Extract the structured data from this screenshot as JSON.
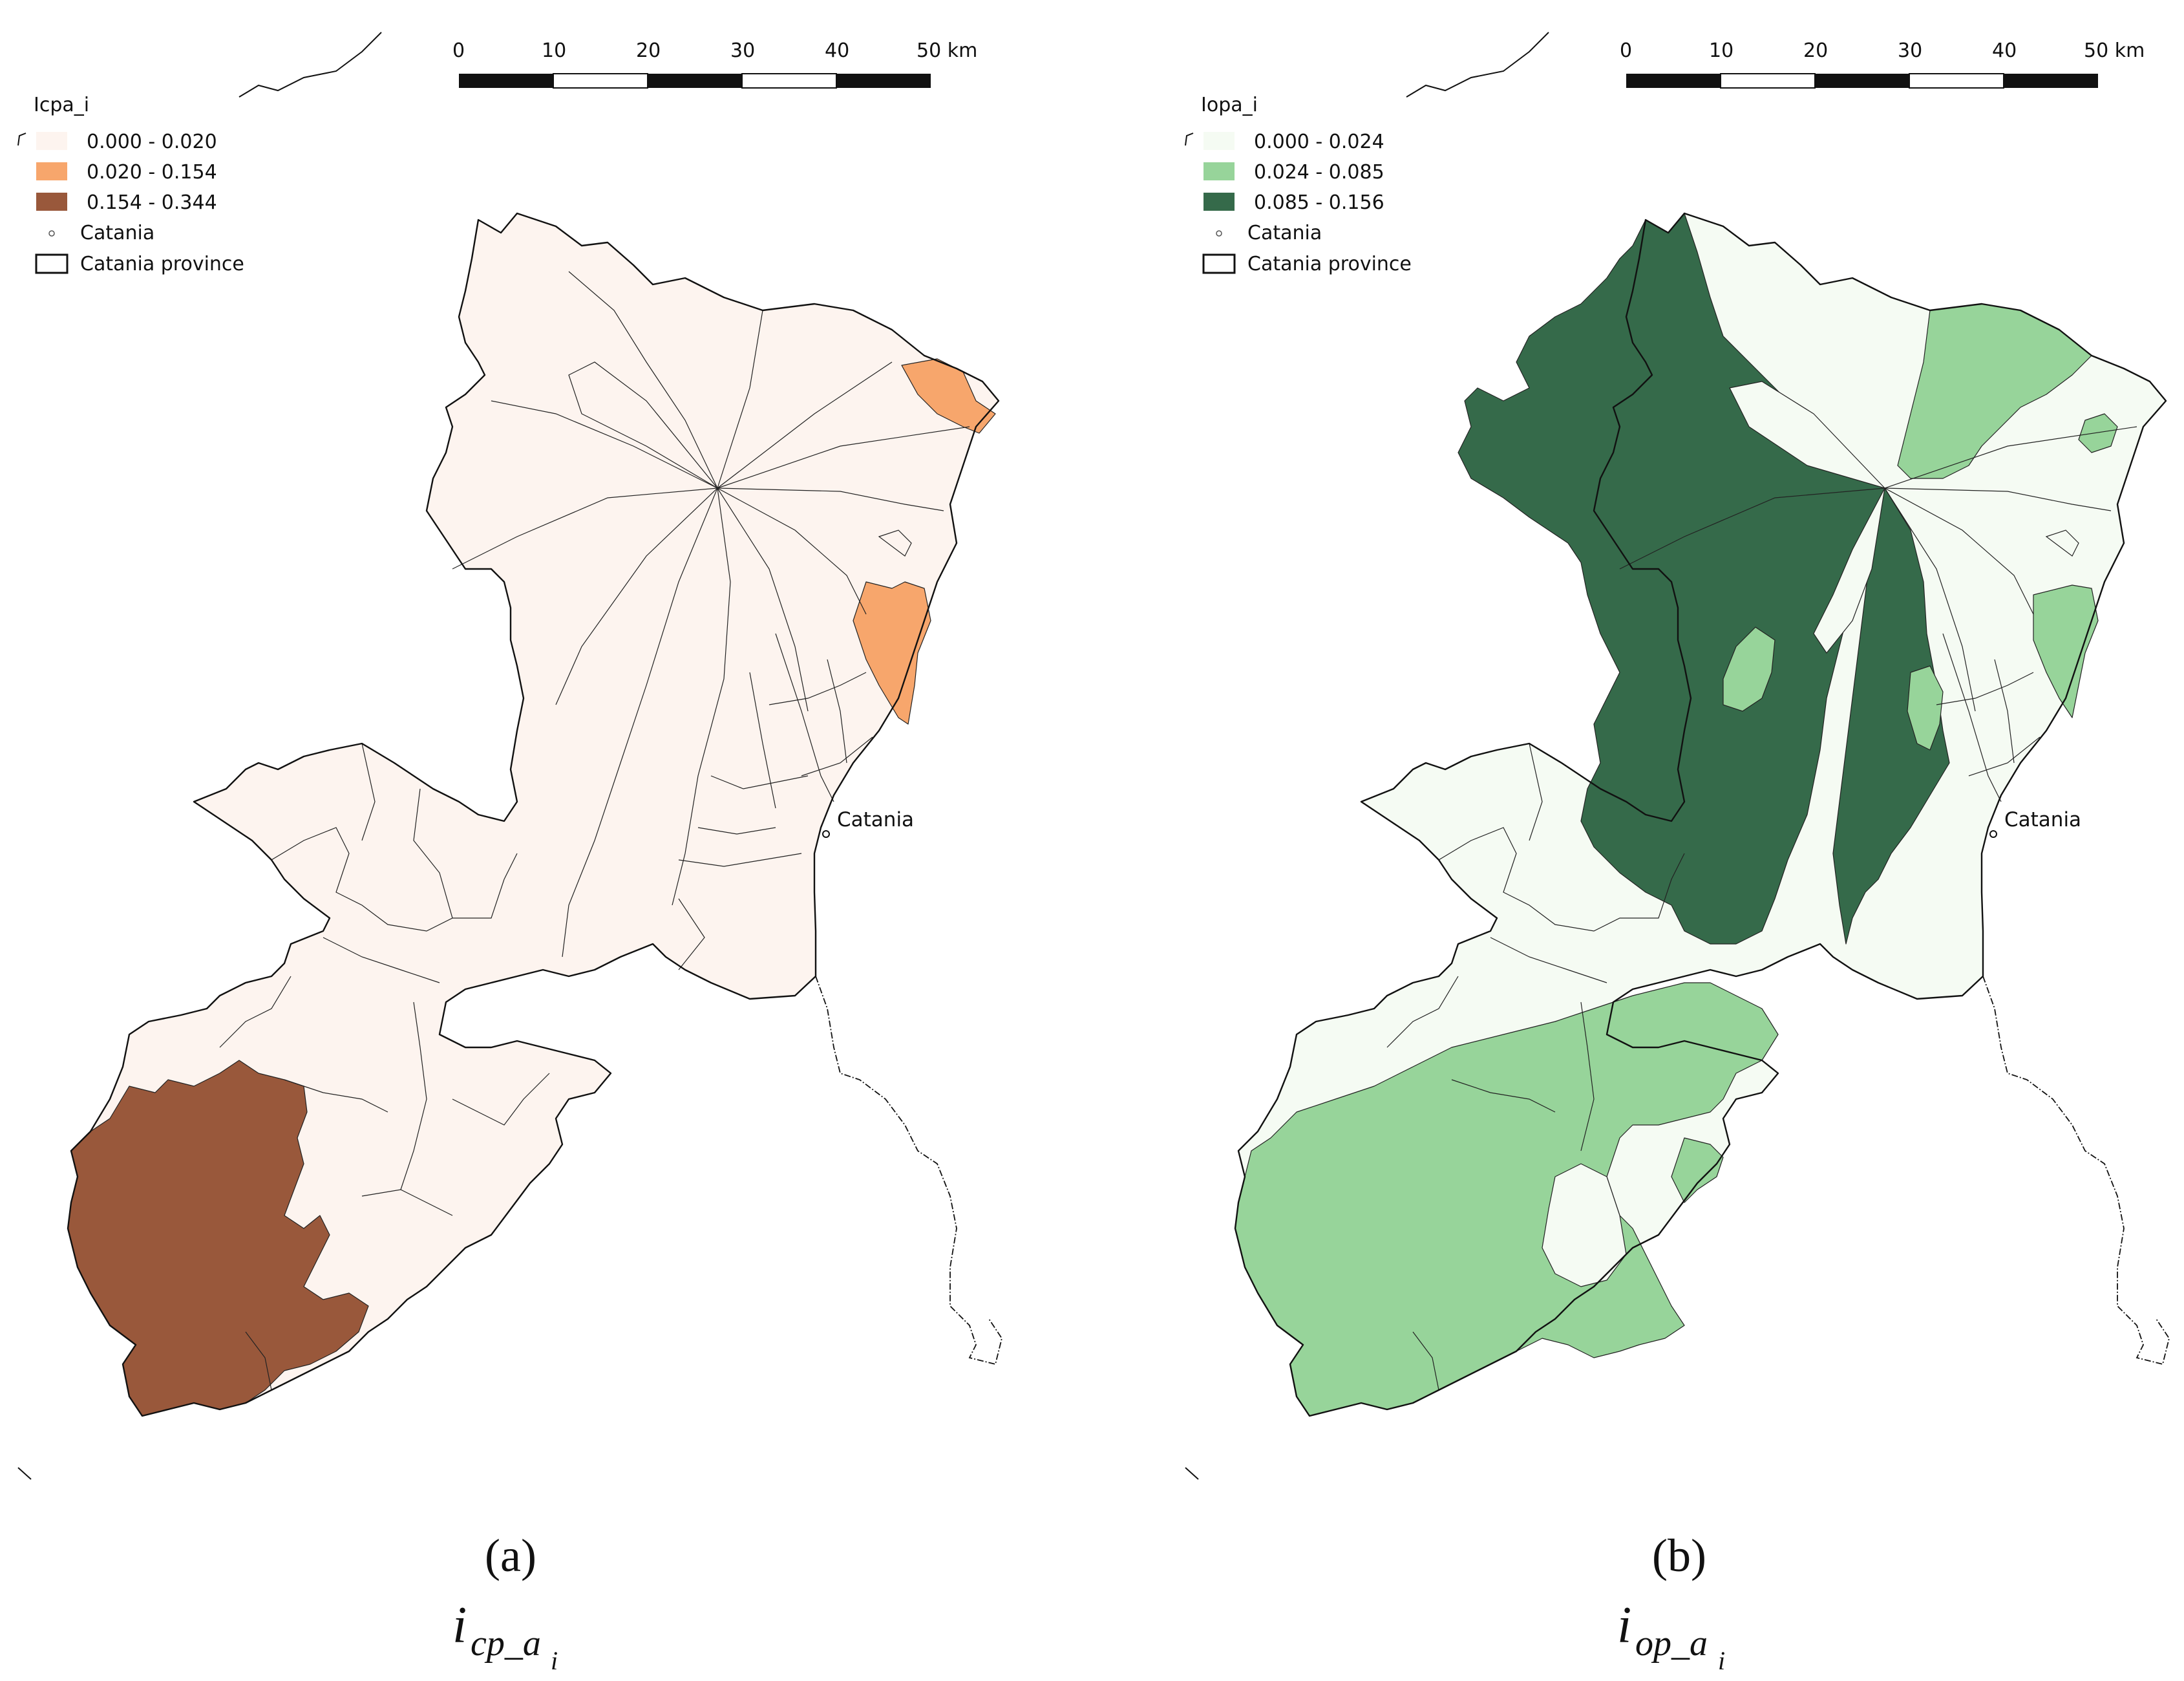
{
  "colors": {
    "background": "#ffffff",
    "a_class1": "#fdf4ef",
    "a_class2": "#f7a66c",
    "a_class3": "#99583b",
    "b_class1": "#f5fbf3",
    "b_class2": "#97d49a",
    "b_class3": "#356a4a",
    "outline": "#111111"
  },
  "panels": [
    {
      "id": "a",
      "legend": {
        "title": "Icpa_i",
        "classes": [
          {
            "label": "0.000 - 0.020",
            "color": "#fdf4ef"
          },
          {
            "label": "0.020 - 0.154",
            "color": "#f7a66c"
          },
          {
            "label": "0.154 - 0.344",
            "color": "#99583b"
          }
        ],
        "city_label": "Catania",
        "province_label": "Catania province"
      },
      "scale_labels": [
        "0",
        "10",
        "20",
        "30",
        "40",
        "50 km"
      ],
      "city_map_label": "Catania",
      "caption_letter": "(a)",
      "caption_symbol": "i",
      "caption_subscript": "cp_a",
      "caption_subsubscript": "i"
    },
    {
      "id": "b",
      "legend": {
        "title": "Iopa_i",
        "classes": [
          {
            "label": "0.000 - 0.024",
            "color": "#f5fbf3"
          },
          {
            "label": "0.024 - 0.085",
            "color": "#97d49a"
          },
          {
            "label": "0.085 - 0.156",
            "color": "#356a4a"
          }
        ],
        "city_label": "Catania",
        "province_label": "Catania province"
      },
      "scale_labels": [
        "0",
        "10",
        "20",
        "30",
        "40",
        "50 km"
      ],
      "city_map_label": "Catania",
      "caption_letter": "(b)",
      "caption_symbol": "i",
      "caption_subscript": "op_a",
      "caption_subsubscript": "i"
    }
  ]
}
